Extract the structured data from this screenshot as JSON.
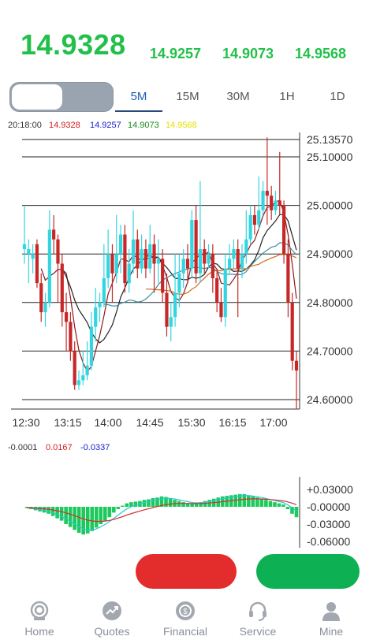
{
  "quote": {
    "price": "14.9328",
    "values": [
      "14.9257",
      "14.9073",
      "14.9568"
    ]
  },
  "tabs": [
    {
      "label": "5M",
      "active": true
    },
    {
      "label": "15M",
      "active": false
    },
    {
      "label": "30M",
      "active": false
    },
    {
      "label": "1H",
      "active": false
    },
    {
      "label": "1D",
      "active": false
    }
  ],
  "chart_info": {
    "time": "20:18:00",
    "values": [
      {
        "text": "14.9328",
        "color": "#d42020"
      },
      {
        "text": "14.9257",
        "color": "#1a1ad4"
      },
      {
        "text": "14.9073",
        "color": "#1a8a1a"
      },
      {
        "text": "14.9568",
        "color": "#e6e000"
      }
    ]
  },
  "chart_data": {
    "type": "candlestick",
    "y_ticks": [
      "25.13570",
      "25.10000",
      "25.00000",
      "24.90000",
      "24.80000",
      "24.70000",
      "24.60000"
    ],
    "x_ticks": [
      "12:30",
      "13:15",
      "14:00",
      "14:45",
      "15:30",
      "16:15",
      "17:00"
    ],
    "candles": [
      [
        24.91,
        24.92,
        24.88,
        25.0
      ],
      [
        24.9,
        24.91,
        24.84,
        24.93
      ],
      [
        24.89,
        24.9,
        24.86,
        24.92
      ],
      [
        24.92,
        24.84,
        24.83,
        24.93
      ],
      [
        24.84,
        24.78,
        24.76,
        24.86
      ],
      [
        24.78,
        24.8,
        24.75,
        24.82
      ],
      [
        24.8,
        24.95,
        24.79,
        24.99
      ],
      [
        24.95,
        24.93,
        24.9,
        24.98
      ],
      [
        24.93,
        24.88,
        24.8,
        24.94
      ],
      [
        24.88,
        24.78,
        24.75,
        24.9
      ],
      [
        24.78,
        24.76,
        24.7,
        24.82
      ],
      [
        24.76,
        24.7,
        24.68,
        24.78
      ],
      [
        24.7,
        24.63,
        24.62,
        24.72
      ],
      [
        24.63,
        24.64,
        24.62,
        24.66
      ],
      [
        24.64,
        24.65,
        24.63,
        24.7
      ],
      [
        24.65,
        24.67,
        24.64,
        24.72
      ],
      [
        24.67,
        24.75,
        24.66,
        24.78
      ],
      [
        24.75,
        24.79,
        24.72,
        24.83
      ],
      [
        24.79,
        24.8,
        24.76,
        24.82
      ],
      [
        24.8,
        24.85,
        24.79,
        24.92
      ],
      [
        24.85,
        24.9,
        24.83,
        24.95
      ],
      [
        24.9,
        24.86,
        24.8,
        24.92
      ],
      [
        24.86,
        24.9,
        24.84,
        24.98
      ],
      [
        24.9,
        24.94,
        24.86,
        24.96
      ],
      [
        24.94,
        24.84,
        24.82,
        24.96
      ],
      [
        24.84,
        24.88,
        24.82,
        24.91
      ],
      [
        24.88,
        24.93,
        24.86,
        24.99
      ],
      [
        24.93,
        24.87,
        24.85,
        24.95
      ],
      [
        24.87,
        24.91,
        24.86,
        24.94
      ],
      [
        24.91,
        24.87,
        24.85,
        24.93
      ],
      [
        24.87,
        24.92,
        24.86,
        24.96
      ],
      [
        24.92,
        24.88,
        24.82,
        24.94
      ],
      [
        24.88,
        24.89,
        24.84,
        24.93
      ],
      [
        24.89,
        24.82,
        24.8,
        24.91
      ],
      [
        24.82,
        24.75,
        24.73,
        24.86
      ],
      [
        24.75,
        24.77,
        24.72,
        24.8
      ],
      [
        24.77,
        24.82,
        24.75,
        24.9
      ],
      [
        24.82,
        24.86,
        24.79,
        24.9
      ],
      [
        24.86,
        24.89,
        24.83,
        24.91
      ],
      [
        24.89,
        24.87,
        24.84,
        24.92
      ],
      [
        24.87,
        24.97,
        24.85,
        24.99
      ],
      [
        24.97,
        24.86,
        24.84,
        25.0
      ],
      [
        24.86,
        24.91,
        24.84,
        25.05
      ],
      [
        24.91,
        24.88,
        24.86,
        24.93
      ],
      [
        24.88,
        24.9,
        24.87,
        24.92
      ],
      [
        24.9,
        24.85,
        24.82,
        24.92
      ],
      [
        24.85,
        24.8,
        24.78,
        24.87
      ],
      [
        24.8,
        24.77,
        24.76,
        24.83
      ],
      [
        24.77,
        24.87,
        24.75,
        24.9
      ],
      [
        24.87,
        24.89,
        24.86,
        24.92
      ],
      [
        24.89,
        24.91,
        24.87,
        24.93
      ],
      [
        24.91,
        24.87,
        24.77,
        24.93
      ],
      [
        24.87,
        24.9,
        24.85,
        24.92
      ],
      [
        24.9,
        24.93,
        24.88,
        24.99
      ],
      [
        24.93,
        24.98,
        24.92,
        25.0
      ],
      [
        24.98,
        24.96,
        24.94,
        25.0
      ],
      [
        24.96,
        24.99,
        24.95,
        25.06
      ],
      [
        24.99,
        25.03,
        24.98,
        25.05
      ],
      [
        25.03,
        25.02,
        24.96,
        25.14
      ],
      [
        25.02,
        24.99,
        24.97,
        25.04
      ],
      [
        24.99,
        25.01,
        24.98,
        25.03
      ],
      [
        25.01,
        25.0,
        24.98,
        25.11
      ],
      [
        25.0,
        24.9,
        24.88,
        25.01
      ],
      [
        24.9,
        24.8,
        24.77,
        24.93
      ],
      [
        24.8,
        24.68,
        24.66,
        24.82
      ],
      [
        24.68,
        24.66,
        24.58,
        24.7
      ]
    ],
    "macd": {
      "labels": [
        "-0.0001",
        "0.0167",
        "-0.0337"
      ],
      "label_colors": [
        "#333333",
        "#d42020",
        "#1a1ad4"
      ],
      "y_ticks": [
        "+0.03000",
        "-0.00000",
        "-0.03000",
        "-0.06000"
      ],
      "hist": [
        -0.002,
        -0.004,
        -0.006,
        -0.008,
        -0.01,
        -0.012,
        -0.016,
        -0.02,
        -0.024,
        -0.03,
        -0.035,
        -0.04,
        -0.045,
        -0.048,
        -0.046,
        -0.042,
        -0.036,
        -0.03,
        -0.024,
        -0.018,
        -0.01,
        -0.004,
        0.002,
        0.006,
        0.008,
        0.009,
        0.01,
        0.012,
        0.013,
        0.015,
        0.016,
        0.018,
        0.017,
        0.015,
        0.012,
        0.01,
        0.008,
        0.006,
        0.005,
        0.006,
        0.008,
        0.01,
        0.012,
        0.014,
        0.016,
        0.018,
        0.019,
        0.02,
        0.021,
        0.022,
        0.022,
        0.02,
        0.018,
        0.016,
        0.014,
        0.012,
        0.01,
        0.008,
        0.006,
        0.004,
        -0.004,
        -0.012,
        -0.018
      ]
    }
  },
  "actions": {
    "sell": "",
    "buy": ""
  },
  "nav": [
    {
      "label": "Home",
      "icon": "home-icon"
    },
    {
      "label": "Quotes",
      "icon": "quotes-icon"
    },
    {
      "label": "Financial",
      "icon": "financial-icon"
    },
    {
      "label": "Service",
      "icon": "service-icon"
    },
    {
      "label": "Mine",
      "icon": "mine-icon"
    }
  ]
}
